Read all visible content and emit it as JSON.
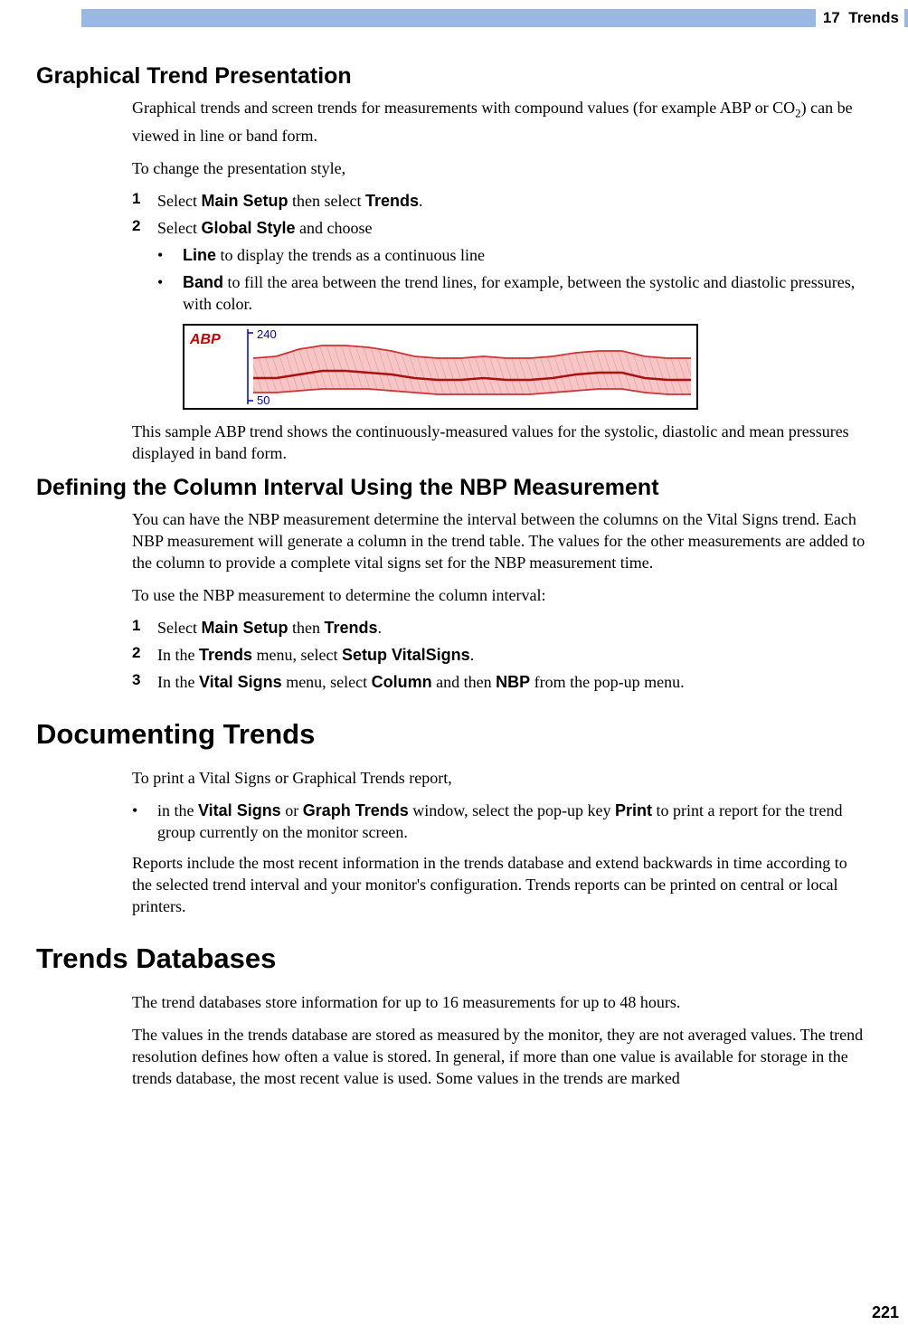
{
  "header": {
    "chapter_num": "17",
    "chapter_title": "Trends",
    "bar_color": "#9bb8e3"
  },
  "page_number": "221",
  "section1": {
    "title": "Graphical Trend Presentation",
    "p1_a": "Graphical trends and screen trends for measurements with compound values (for example ABP or CO",
    "p1_sub": "2",
    "p1_b": ") can be viewed in line or band form.",
    "p2": "To change the presentation style,",
    "step1_num": "1",
    "step1_a": "Select ",
    "step1_b": "Main Setup",
    "step1_c": " then select ",
    "step1_d": "Trends",
    "step1_e": ".",
    "step2_num": "2",
    "step2_a": "Select ",
    "step2_b": "Global Style",
    "step2_c": " and choose",
    "bullet1_a": "Line",
    "bullet1_b": " to display the trends as a continuous line",
    "bullet2_a": "Band",
    "bullet2_b": " to fill the area between the trend lines, for example, between the systolic and diastolic pressures, with color.",
    "chart": {
      "label": "ABP",
      "upper_tick": "240",
      "lower_tick": "50",
      "label_color": "#cc0000",
      "axis_color": "#0000cc",
      "band_fill": "#f6c6c6",
      "band_hatch": "#e99",
      "mean_line": "#aa1111",
      "outer_line": "#cc3333",
      "systolic_y": [
        36,
        34,
        26,
        22,
        22,
        24,
        28,
        34,
        36,
        36,
        34,
        36,
        36,
        34,
        30,
        28,
        28,
        34,
        36,
        36
      ],
      "diastolic_y": [
        74,
        74,
        72,
        70,
        70,
        70,
        72,
        74,
        76,
        76,
        76,
        76,
        76,
        74,
        72,
        70,
        70,
        74,
        76,
        76
      ],
      "mean_y": [
        58,
        58,
        54,
        50,
        50,
        52,
        54,
        58,
        60,
        60,
        58,
        60,
        60,
        58,
        54,
        52,
        52,
        58,
        60,
        60
      ]
    },
    "p3": "This sample ABP trend shows the continuously-measured values for the systolic, diastolic and mean pressures displayed in band form."
  },
  "section2": {
    "title": "Defining the Column Interval Using the NBP Measurement",
    "p1": "You can have the NBP measurement determine the interval between the columns on the Vital Signs trend. Each NBP measurement will generate a column in the trend table. The values for the other measurements are added to the column to provide a complete vital signs set for the NBP measurement time.",
    "p2": "To use the NBP measurement to determine the column interval:",
    "step1_num": "1",
    "step1_a": "Select ",
    "step1_b": "Main Setup",
    "step1_c": " then ",
    "step1_d": "Trends",
    "step1_e": ".",
    "step2_num": "2",
    "step2_a": "In the ",
    "step2_b": "Trends",
    "step2_c": " menu, select ",
    "step2_d": "Setup VitalSigns",
    "step2_e": ".",
    "step3_num": "3",
    "step3_a": "In the ",
    "step3_b": "Vital Signs",
    "step3_c": " menu, select ",
    "step3_d": "Column",
    "step3_e": " and then ",
    "step3_f": "NBP",
    "step3_g": " from the pop-up menu."
  },
  "section3": {
    "title": "Documenting Trends",
    "p1": "To print a Vital Signs or Graphical Trends report,",
    "bullet1_a": "in the ",
    "bullet1_b": "Vital Signs",
    "bullet1_c": " or ",
    "bullet1_d": "Graph Trends",
    "bullet1_e": " window, select the pop-up key ",
    "bullet1_f": "Print",
    "bullet1_g": " to print a report for the trend group currently on the monitor screen.",
    "p2": "Reports include the most recent information in the trends database and extend backwards in time according to the selected trend interval and your monitor's configuration. Trends reports can be printed on central or local printers."
  },
  "section4": {
    "title": "Trends Databases",
    "p1": "The trend databases store information for up to 16 measurements for up to 48 hours.",
    "p2": "The values in the trends database are stored as measured by the monitor, they are not averaged values. The trend resolution defines how often a value is stored. In general, if more than one value is available for storage in the trends database, the most recent value is used. Some values in the trends are marked"
  }
}
